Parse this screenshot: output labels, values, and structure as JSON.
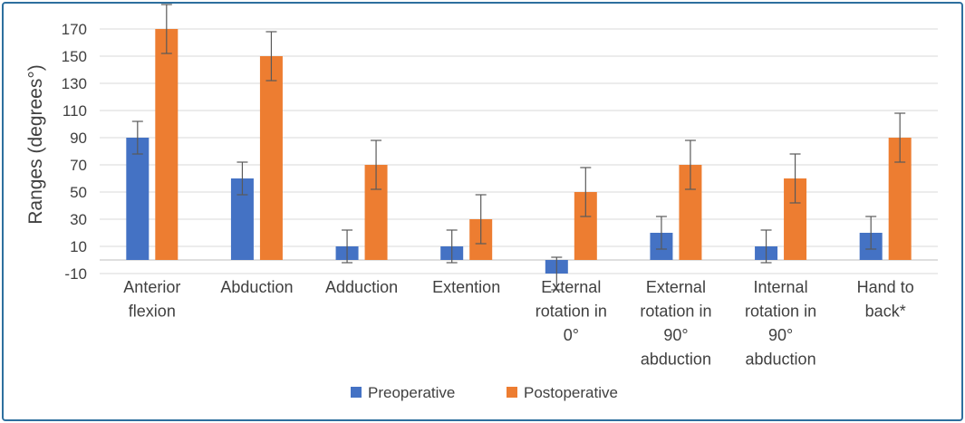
{
  "chart_data": {
    "type": "bar",
    "title": "",
    "xlabel": "",
    "ylabel": "Ranges (degrees°)",
    "ylim": [
      -10,
      180
    ],
    "yticks": [
      -10,
      10,
      30,
      50,
      70,
      90,
      110,
      130,
      150,
      170
    ],
    "grid": "horizontal",
    "legend_position": "bottom",
    "categories": [
      [
        "Anterior",
        "flexion"
      ],
      [
        "Abduction"
      ],
      [
        "Adduction"
      ],
      [
        "Extention"
      ],
      [
        "External",
        "rotation in",
        "0°"
      ],
      [
        "External",
        "rotation in",
        "90°",
        "abduction"
      ],
      [
        "Internal",
        "rotation in",
        "90°",
        "abduction"
      ],
      [
        "Hand to",
        "back*"
      ]
    ],
    "series": [
      {
        "name": "Preoperative",
        "color": "#4472c4",
        "values": [
          90,
          60,
          10,
          10,
          -10,
          20,
          10,
          20
        ],
        "error": [
          12,
          12,
          12,
          12,
          12,
          12,
          12,
          12
        ]
      },
      {
        "name": "Postoperative",
        "color": "#ed7d31",
        "values": [
          170,
          150,
          70,
          30,
          50,
          70,
          60,
          90
        ],
        "error": [
          18,
          18,
          18,
          18,
          18,
          18,
          18,
          18
        ]
      }
    ]
  }
}
